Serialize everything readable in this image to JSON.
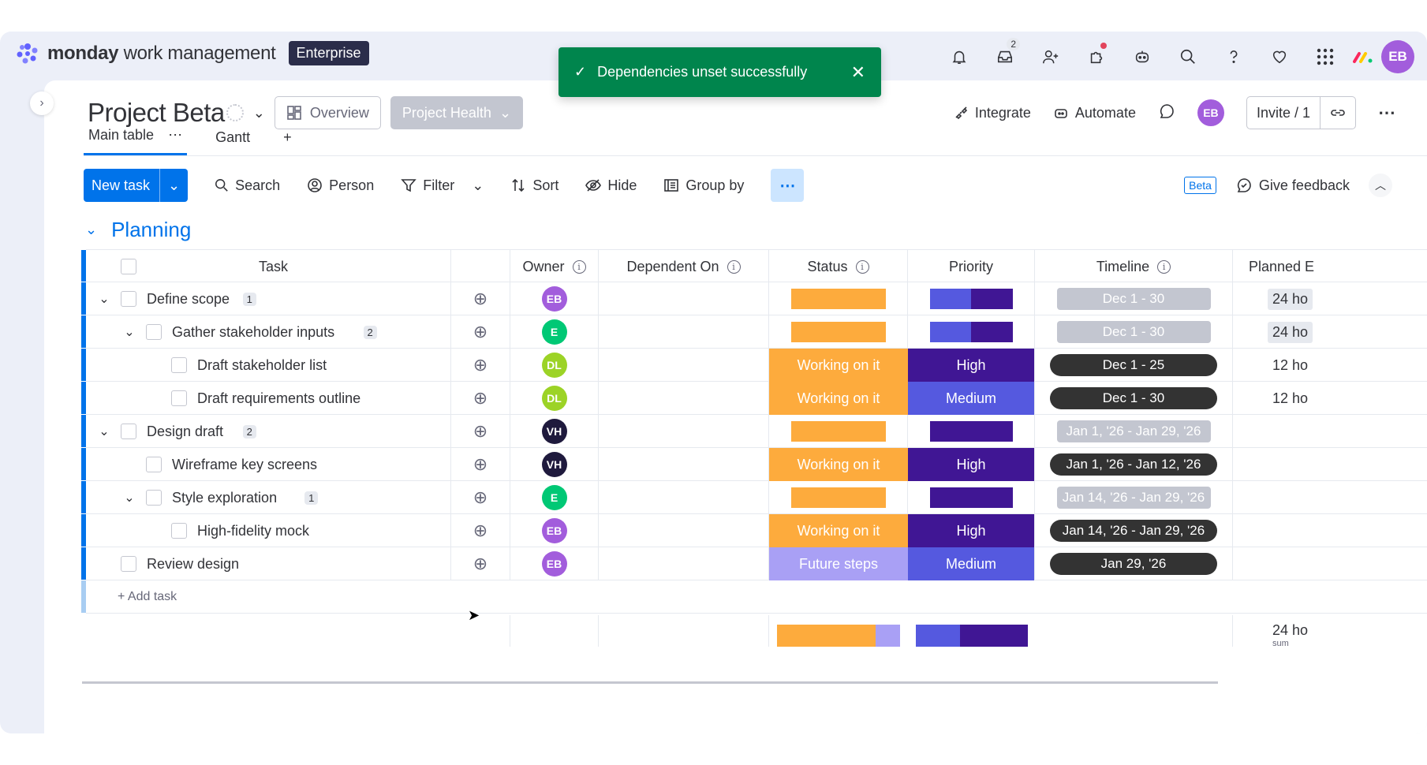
{
  "app": {
    "brand_bold": "monday",
    "brand_rest": "work management",
    "plan": "Enterprise"
  },
  "topbar": {
    "inbox_badge": "2",
    "user_initials": "EB"
  },
  "toast": {
    "message": "Dependencies unset successfully"
  },
  "board": {
    "title": "Project Beta",
    "overview_label": "Overview",
    "health_label": "Project Health",
    "integrate_label": "Integrate",
    "automate_label": "Automate",
    "invite_label": "Invite / 1",
    "owner_initials": "EB"
  },
  "tabs": [
    {
      "label": "Main table"
    },
    {
      "label": "Gantt"
    }
  ],
  "toolbar": {
    "new_task": "New task",
    "search": "Search",
    "person": "Person",
    "filter": "Filter",
    "sort": "Sort",
    "hide": "Hide",
    "group_by": "Group by",
    "beta": "Beta",
    "feedback": "Give feedback"
  },
  "group": {
    "title": "Planning",
    "add_task": "+ Add task"
  },
  "columns": {
    "task": "Task",
    "owner": "Owner",
    "dependent": "Dependent On",
    "status": "Status",
    "priority": "Priority",
    "timeline": "Timeline",
    "planned": "Planned E"
  },
  "colors": {
    "working": "#fdab3d",
    "future": "#a9a0f5",
    "high": "#401694",
    "medium": "#5559df",
    "timeline_done": "#333333",
    "timeline_grey": "#c3c6d0"
  },
  "rows": [
    {
      "level": 0,
      "expand": true,
      "name": "Define scope",
      "count": "1",
      "initials": "EB",
      "avatar": "#a25ddc",
      "status": "",
      "priority": "",
      "timeline": "Dec 1 - 30",
      "planned": "24 ho",
      "summary": true
    },
    {
      "level": 1,
      "expand": true,
      "name": "Gather stakeholder inputs",
      "count": "2",
      "initials": "E",
      "avatar": "#00c875",
      "status": "",
      "priority": "",
      "timeline": "Dec 1 - 30",
      "planned": "24 ho",
      "summary": true
    },
    {
      "level": 2,
      "expand": false,
      "name": "Draft stakeholder list",
      "count": "",
      "initials": "DL",
      "avatar": "#9cd326",
      "status": "Working on it",
      "priority": "High",
      "timeline": "Dec 1 - 25",
      "planned": "12 ho",
      "summary": false
    },
    {
      "level": 2,
      "expand": false,
      "name": "Draft requirements outline",
      "count": "",
      "initials": "DL",
      "avatar": "#9cd326",
      "status": "Working on it",
      "priority": "Medium",
      "timeline": "Dec 1 - 30",
      "planned": "12 ho",
      "summary": false
    },
    {
      "level": 0,
      "expand": true,
      "name": "Design draft",
      "count": "2",
      "initials": "VH",
      "avatar": "#1f1a3d",
      "status": "",
      "priority": "",
      "timeline": "Jan 1, '26 - Jan 29, '26",
      "planned": "",
      "summary": true
    },
    {
      "level": 1,
      "expand": false,
      "name": "Wireframe key screens",
      "count": "",
      "initials": "VH",
      "avatar": "#1f1a3d",
      "status": "Working on it",
      "priority": "High",
      "timeline": "Jan 1, '26 - Jan 12, '26",
      "planned": "",
      "summary": false
    },
    {
      "level": 1,
      "expand": true,
      "name": "Style exploration",
      "count": "1",
      "initials": "E",
      "avatar": "#00c875",
      "status": "",
      "priority": "",
      "timeline": "Jan 14, '26 - Jan 29, '26",
      "planned": "",
      "summary": true
    },
    {
      "level": 2,
      "expand": false,
      "name": "High-fidelity mock",
      "count": "",
      "initials": "EB",
      "avatar": "#a25ddc",
      "status": "Working on it",
      "priority": "High",
      "timeline": "Jan 14, '26 - Jan 29, '26",
      "planned": "",
      "summary": false
    },
    {
      "level": 0,
      "expand": false,
      "name": "Review design",
      "count": "",
      "initials": "EB",
      "avatar": "#a25ddc",
      "status": "Future steps",
      "priority": "Medium",
      "timeline": "Jan 29, '26",
      "planned": "",
      "summary": false
    }
  ],
  "footer": {
    "planned_total": "24 ho",
    "planned_sub": "sum"
  }
}
